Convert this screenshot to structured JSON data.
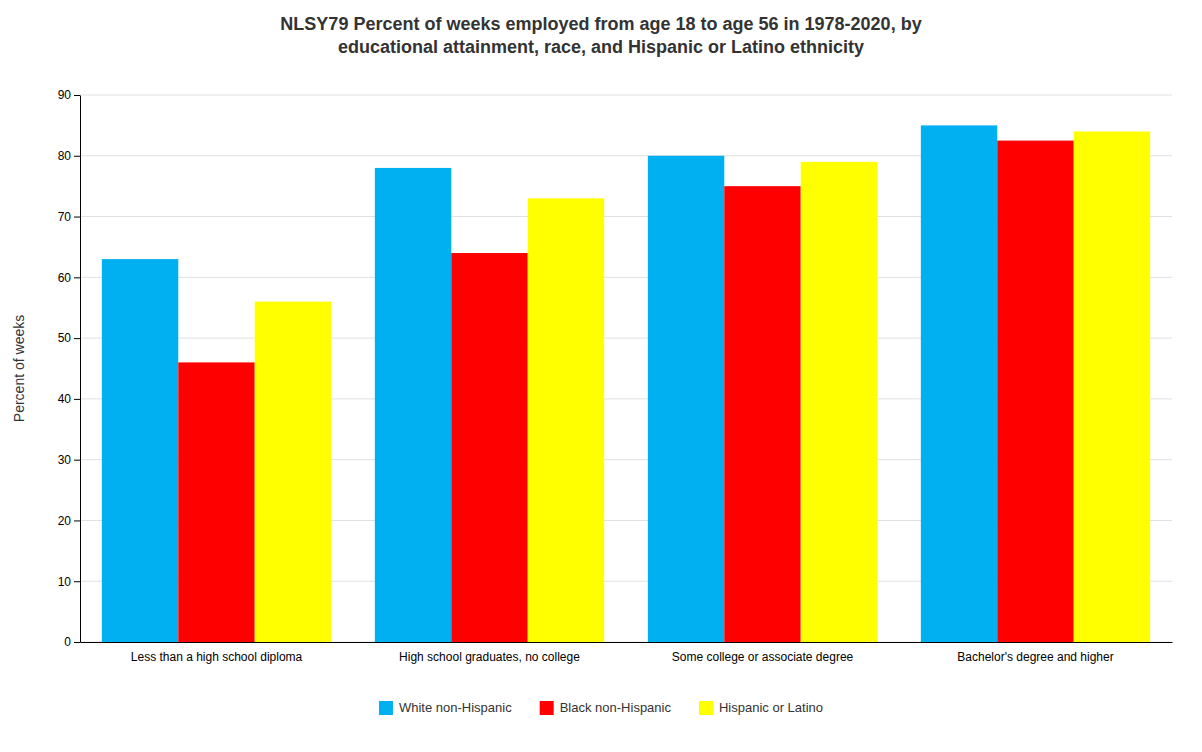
{
  "chart_data": {
    "type": "bar",
    "title": "NLSY79 Percent of weeks employed from age 18 to age 56 in 1978-2020, by\neducational attainment, race, and Hispanic or Latino ethnicity",
    "ylabel": "Percent of weeks",
    "categories": [
      "Less than a high school diploma",
      "High school graduates, no college",
      "Some college or associate degree",
      "Bachelor's degree and higher"
    ],
    "series": [
      {
        "name": "White non-Hispanic",
        "color": "#00B0F0",
        "values": [
          63,
          78,
          80,
          85
        ]
      },
      {
        "name": "Black non-Hispanic",
        "color": "#FF0000",
        "values": [
          46,
          64,
          75,
          82.5
        ]
      },
      {
        "name": "Hispanic or Latino",
        "color": "#FFFF00",
        "values": [
          56,
          73,
          79,
          84
        ]
      }
    ],
    "ylim": [
      0,
      90
    ],
    "yticks": [
      0,
      10,
      20,
      30,
      40,
      50,
      60,
      70,
      80,
      90
    ],
    "grid": true,
    "legend": "bottom"
  }
}
